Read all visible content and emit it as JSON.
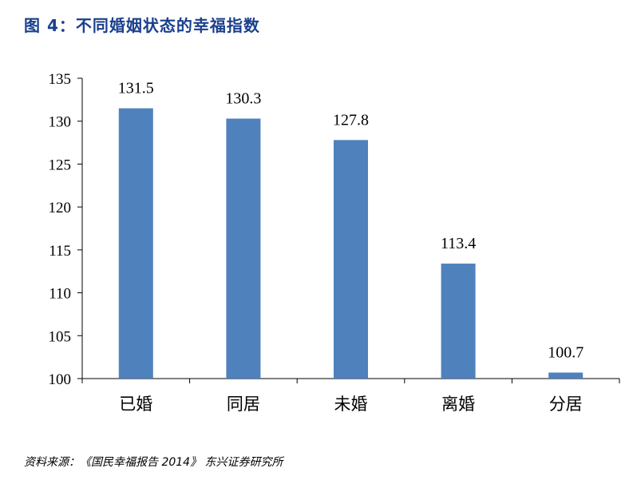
{
  "figure": {
    "title": "图 4：不同婚姻状态的幸福指数",
    "source": "资料来源：《国民幸福报告 2014》 东兴证券研究所"
  },
  "chart_data": {
    "type": "bar",
    "categories": [
      "已婚",
      "同居",
      "未婚",
      "离婚",
      "分居"
    ],
    "values": [
      131.5,
      130.3,
      127.8,
      113.4,
      100.7
    ],
    "value_labels": [
      "131.5",
      "130.3",
      "127.8",
      "113.4",
      "100.7"
    ],
    "ylim": [
      100,
      135
    ],
    "yticks": [
      100,
      105,
      110,
      115,
      120,
      125,
      130,
      135
    ],
    "grid": false,
    "legend": "none",
    "bar_color": "#4f81bd",
    "title": "",
    "xlabel": "",
    "ylabel": ""
  }
}
